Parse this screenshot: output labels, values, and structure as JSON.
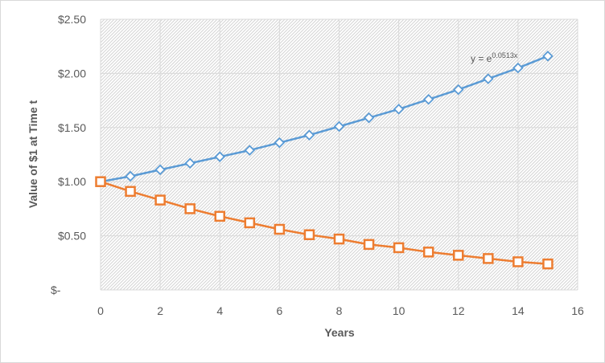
{
  "chart_data": {
    "type": "line",
    "title": "",
    "xlabel": "Years",
    "ylabel": "Value of $1 at Time t",
    "xlim": [
      0,
      16
    ],
    "ylim": [
      0,
      2.5
    ],
    "x_ticks": [
      0,
      2,
      4,
      6,
      8,
      10,
      12,
      14,
      16
    ],
    "x_tick_labels": [
      "0",
      "2",
      "4",
      "6",
      "8",
      "10",
      "12",
      "14",
      "16"
    ],
    "y_ticks": [
      0,
      0.5,
      1.0,
      1.5,
      2.0,
      2.5
    ],
    "y_tick_labels": [
      "$-",
      "$0.50",
      "$1.00",
      "$1.50",
      "$2.00",
      "$2.50"
    ],
    "grid": true,
    "legend": "none",
    "annotation": {
      "base": "y = e",
      "exponent": "0.0513x"
    },
    "x": [
      0,
      1,
      2,
      3,
      4,
      5,
      6,
      7,
      8,
      9,
      10,
      11,
      12,
      13,
      14,
      15
    ],
    "series": [
      {
        "marker": "diamond",
        "color": "#5b9bd5",
        "values": [
          1.0,
          1.05,
          1.11,
          1.17,
          1.23,
          1.29,
          1.36,
          1.43,
          1.51,
          1.59,
          1.67,
          1.76,
          1.85,
          1.95,
          2.05,
          2.16
        ]
      },
      {
        "marker": "square",
        "color": "#ed7d31",
        "values": [
          1.0,
          0.91,
          0.83,
          0.75,
          0.68,
          0.62,
          0.56,
          0.51,
          0.47,
          0.42,
          0.39,
          0.35,
          0.32,
          0.29,
          0.26,
          0.24
        ]
      }
    ]
  }
}
